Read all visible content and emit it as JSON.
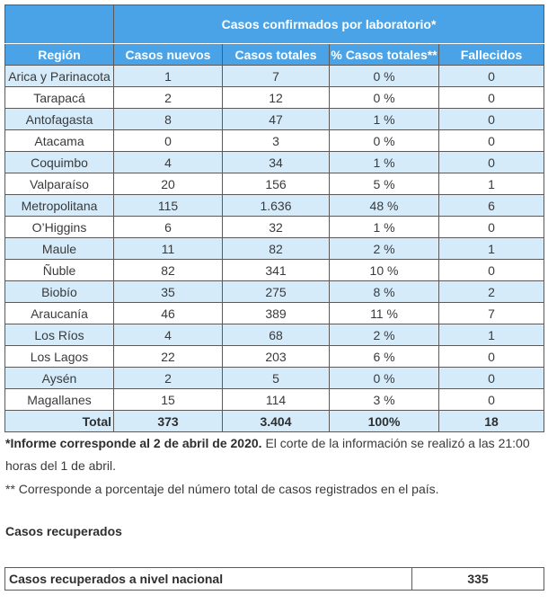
{
  "table": {
    "group_header": "Casos confirmados por laboratorio*",
    "columns": [
      "Región",
      "Casos nuevos",
      "Casos totales",
      "% Casos totales**",
      "Fallecidos"
    ],
    "rows": [
      {
        "region": "Arica y Parinacota",
        "nuevos": "1",
        "totales": "7",
        "pct": "0 %",
        "fallecidos": "0"
      },
      {
        "region": "Tarapacá",
        "nuevos": "2",
        "totales": "12",
        "pct": "0 %",
        "fallecidos": "0"
      },
      {
        "region": "Antofagasta",
        "nuevos": "8",
        "totales": "47",
        "pct": "1 %",
        "fallecidos": "0"
      },
      {
        "region": "Atacama",
        "nuevos": "0",
        "totales": "3",
        "pct": "0 %",
        "fallecidos": "0"
      },
      {
        "region": "Coquimbo",
        "nuevos": "4",
        "totales": "34",
        "pct": "1 %",
        "fallecidos": "0"
      },
      {
        "region": "Valparaíso",
        "nuevos": "20",
        "totales": "156",
        "pct": "5 %",
        "fallecidos": "1"
      },
      {
        "region": "Metropolitana",
        "nuevos": "115",
        "totales": "1.636",
        "pct": "48 %",
        "fallecidos": "6"
      },
      {
        "region": "O’Higgins",
        "nuevos": "6",
        "totales": "32",
        "pct": "1 %",
        "fallecidos": "0"
      },
      {
        "region": "Maule",
        "nuevos": "11",
        "totales": "82",
        "pct": "2 %",
        "fallecidos": "1"
      },
      {
        "region": "Ñuble",
        "nuevos": "82",
        "totales": "341",
        "pct": "10 %",
        "fallecidos": "0"
      },
      {
        "region": "Biobío",
        "nuevos": "35",
        "totales": "275",
        "pct": "8 %",
        "fallecidos": "2"
      },
      {
        "region": "Araucanía",
        "nuevos": "46",
        "totales": "389",
        "pct": "11 %",
        "fallecidos": "7"
      },
      {
        "region": "Los Ríos",
        "nuevos": "4",
        "totales": "68",
        "pct": "2 %",
        "fallecidos": "1"
      },
      {
        "region": "Los Lagos",
        "nuevos": "22",
        "totales": "203",
        "pct": "6 %",
        "fallecidos": "0"
      },
      {
        "region": "Aysén",
        "nuevos": "2",
        "totales": "5",
        "pct": "0 %",
        "fallecidos": "0"
      },
      {
        "region": "Magallanes",
        "nuevos": "15",
        "totales": "114",
        "pct": "3 %",
        "fallecidos": "0"
      }
    ],
    "total": {
      "label": "Total",
      "nuevos": "373",
      "totales": "3.404",
      "pct": "100%",
      "fallecidos": "18"
    }
  },
  "notes": {
    "note1_bold": "*Informe corresponde al 2 de abril de 2020.",
    "note1_rest": " El corte de la información se realizó a las 21:00 horas del 1 de abril.",
    "note2": "** Corresponde a porcentaje del número total de casos registrados en el país."
  },
  "recovered": {
    "heading": "Casos recuperados",
    "label": "Casos recuperados a nivel nacional",
    "value": "335"
  }
}
